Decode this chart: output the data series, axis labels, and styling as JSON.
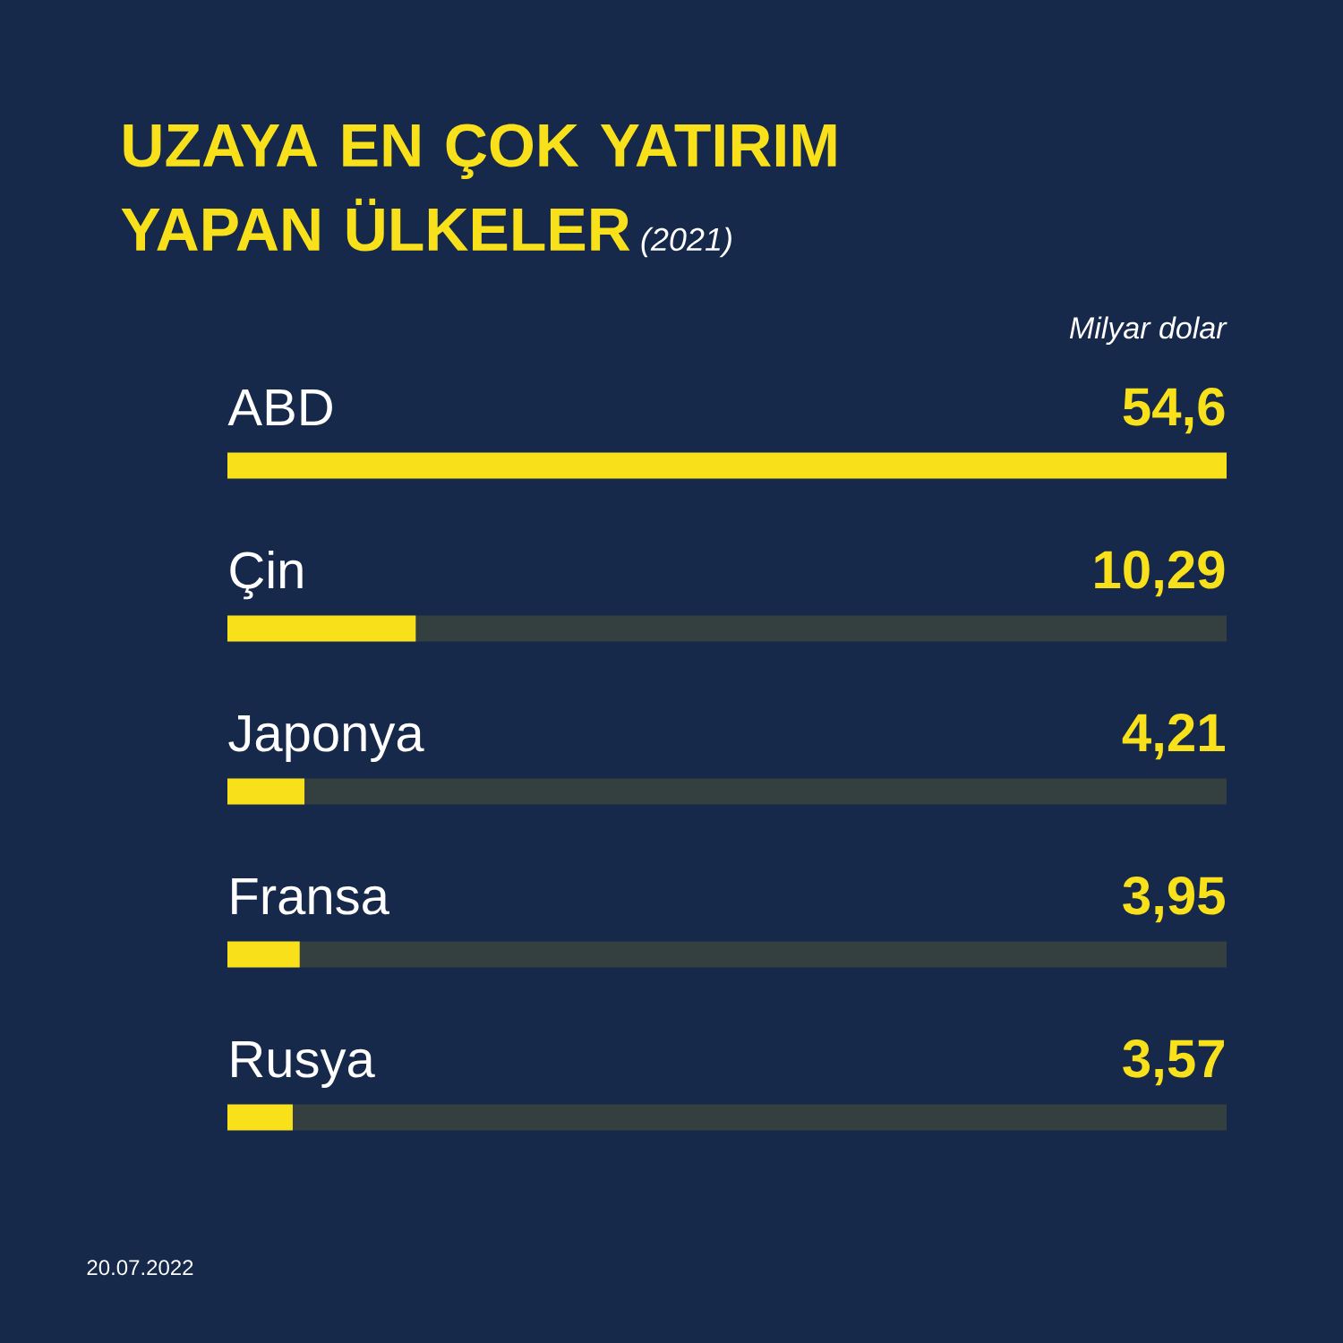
{
  "chart_data": {
    "type": "bar",
    "orientation": "horizontal",
    "title": "UZAYA EN ÇOK YATIRIM YAPAN ÜLKELER",
    "subtitle": "(2021)",
    "xlabel": "Milyar dolar",
    "categories": [
      "ABD",
      "Çin",
      "Japonya",
      "Fransa",
      "Rusya"
    ],
    "values": [
      54.6,
      10.29,
      4.21,
      3.95,
      3.57
    ],
    "value_labels": [
      "54,6",
      "10,29",
      "4,21",
      "3,95",
      "3,57"
    ],
    "color": "#f8e11b",
    "xlim": [
      0,
      54.6
    ],
    "tick_labels": "y",
    "annotations": [
      "20.07.2022"
    ]
  }
}
